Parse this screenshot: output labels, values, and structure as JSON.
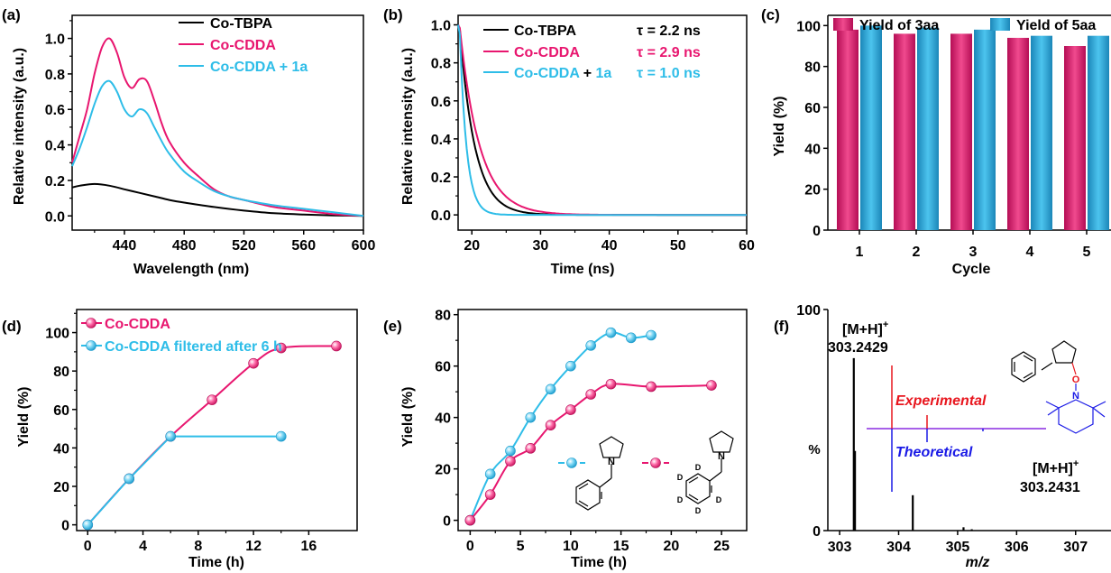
{
  "chart_data": [
    {
      "panel": "(a)",
      "type": "line",
      "xlabel": "Wavelength (nm)",
      "ylabel": "Relative intensity (a.u.)",
      "xlim": [
        405,
        600
      ],
      "ylim": [
        -0.08,
        1.13
      ],
      "xticks": [
        440,
        480,
        520,
        560,
        600
      ],
      "yticks": [
        0.0,
        0.2,
        0.4,
        0.6,
        0.8,
        1.0
      ],
      "legend_position": "top-right",
      "series": [
        {
          "name": "Co-TBPA",
          "color": "#000000",
          "x": [
            405,
            410,
            420,
            430,
            440,
            450,
            460,
            470,
            480,
            500,
            520,
            540,
            560,
            580,
            600
          ],
          "y": [
            0.16,
            0.17,
            0.18,
            0.17,
            0.15,
            0.13,
            0.11,
            0.09,
            0.075,
            0.05,
            0.03,
            0.015,
            0.008,
            0.003,
            0.0
          ]
        },
        {
          "name": "Co-CDDA",
          "color": "#e8166f",
          "x": [
            405,
            410,
            415,
            420,
            425,
            430,
            435,
            440,
            445,
            450,
            455,
            460,
            465,
            470,
            480,
            490,
            500,
            510,
            520,
            540,
            560,
            580,
            600
          ],
          "y": [
            0.3,
            0.45,
            0.6,
            0.8,
            0.95,
            1.0,
            0.92,
            0.78,
            0.72,
            0.77,
            0.76,
            0.65,
            0.52,
            0.42,
            0.3,
            0.22,
            0.15,
            0.11,
            0.09,
            0.05,
            0.03,
            0.01,
            0.0
          ]
        },
        {
          "name": "Co-CDDA + 1a",
          "color": "#2ebde8",
          "x": [
            405,
            410,
            415,
            420,
            425,
            430,
            435,
            440,
            445,
            450,
            455,
            460,
            465,
            470,
            480,
            490,
            500,
            510,
            520,
            540,
            560,
            580,
            600
          ],
          "y": [
            0.28,
            0.38,
            0.5,
            0.63,
            0.73,
            0.76,
            0.7,
            0.6,
            0.56,
            0.6,
            0.58,
            0.5,
            0.42,
            0.35,
            0.25,
            0.19,
            0.14,
            0.11,
            0.09,
            0.06,
            0.04,
            0.02,
            0.0
          ]
        }
      ]
    },
    {
      "panel": "(b)",
      "type": "line",
      "xlabel": "Time (ns)",
      "ylabel": "Relative intensity (a.u.)",
      "xlim": [
        18,
        60
      ],
      "ylim": [
        -0.08,
        1.05
      ],
      "xticks": [
        20,
        30,
        40,
        50,
        60
      ],
      "yticks": [
        0.0,
        0.2,
        0.4,
        0.6,
        0.8,
        1.0
      ],
      "legend_position": "top-right",
      "series": [
        {
          "name": "Co-TBPA",
          "label": "Co-TBPA",
          "tau_label": "τ = 2.2 ns",
          "color": "#000000",
          "tau": 2.2,
          "t0": 18.2
        },
        {
          "name": "Co-CDDA",
          "label": "Co-CDDA",
          "tau_label": "τ = 2.9 ns",
          "color": "#e8166f",
          "tau": 2.9,
          "t0": 18.2
        },
        {
          "name": "Co-CDDA + 1a",
          "label_a": "Co-CDDA",
          "label_b": " + ",
          "label_c": "1a",
          "tau_label": "τ = 1.0 ns",
          "color": "#2ebde8",
          "tau": 1.0,
          "t0": 18.2
        }
      ]
    },
    {
      "panel": "(c)",
      "type": "bar",
      "xlabel": "Cycle",
      "ylabel": "Yield (%)",
      "ylim": [
        0,
        105
      ],
      "yticks": [
        0,
        20,
        40,
        60,
        80,
        100
      ],
      "categories": [
        "1",
        "2",
        "3",
        "4",
        "5"
      ],
      "legend_position": "top",
      "series": [
        {
          "name": "Yield of 3aa",
          "color": "#e8166f",
          "values": [
            98,
            96,
            96,
            94,
            90
          ]
        },
        {
          "name": "Yield of 5aa",
          "color": "#2aa9dc",
          "values": [
            100,
            99,
            98,
            95,
            95
          ]
        }
      ]
    },
    {
      "panel": "(d)",
      "type": "line",
      "xlabel": "Time (h)",
      "ylabel": "Yield (%)",
      "xlim": [
        -0.8,
        19.5
      ],
      "ylim": [
        -3,
        112
      ],
      "xticks": [
        0,
        4,
        8,
        12,
        16
      ],
      "yticks": [
        0,
        20,
        40,
        60,
        80,
        100
      ],
      "legend_position": "top-left",
      "series": [
        {
          "name": "Co-CDDA",
          "color": "#e8166f",
          "x": [
            0,
            3,
            6,
            9,
            12,
            14,
            18
          ],
          "y": [
            0,
            24,
            46,
            65,
            84,
            92,
            93
          ]
        },
        {
          "name": "Co-CDDA filtered after 6 h",
          "color": "#2ebde8",
          "x": [
            0,
            3,
            6,
            14
          ],
          "y": [
            0,
            24,
            46,
            46
          ]
        }
      ]
    },
    {
      "panel": "(e)",
      "type": "line",
      "xlabel": "Time (h)",
      "ylabel": "Yield (%)",
      "xlim": [
        -1.2,
        27.5
      ],
      "ylim": [
        -4,
        82
      ],
      "xticks": [
        0,
        5,
        10,
        15,
        20,
        25
      ],
      "yticks": [
        0,
        20,
        40,
        60,
        80
      ],
      "series": [
        {
          "name": "",
          "color": "#2ebde8",
          "x": [
            0,
            2,
            4,
            6,
            8,
            10,
            12,
            14,
            16,
            18
          ],
          "y": [
            0,
            18,
            27,
            40,
            51,
            60,
            68,
            73,
            71,
            72
          ]
        },
        {
          "name": "",
          "color": "#e8166f",
          "x": [
            0,
            2,
            4,
            6,
            8,
            10,
            12,
            14,
            18,
            24
          ],
          "y": [
            0,
            10,
            23,
            28,
            37,
            43,
            49,
            53,
            52,
            52.5
          ]
        }
      ],
      "structure_labels": {
        "deuterium": "D",
        "nitrogen": "N"
      }
    },
    {
      "panel": "(f)",
      "type": "bar",
      "xlabel": "m/z",
      "ylabel": "%",
      "xlim": [
        302.8,
        307.6
      ],
      "ylim": [
        0,
        100
      ],
      "xticks": [
        303,
        304,
        305,
        306,
        307
      ],
      "yticks": [
        0,
        100
      ],
      "peaks": [
        {
          "x": 303.24,
          "y": 78
        },
        {
          "x": 303.26,
          "y": 36
        },
        {
          "x": 304.24,
          "y": 16
        },
        {
          "x": 305.1,
          "y": 1.5
        },
        {
          "x": 305.24,
          "y": 0.6
        }
      ],
      "inset_left": {
        "label_top": "[M+H]",
        "label_sup": "+",
        "mass": "303.2429"
      },
      "inset": {
        "experimental_label": "Experimental",
        "theoretical_label": "Theoretical",
        "experimental_color": "#e8161e",
        "theoretical_color": "#1a1ae6",
        "axis_color": "#8a2be2"
      },
      "inset_right": {
        "label_top": "[M+H]",
        "label_sup": "+",
        "mass": "303.2431"
      },
      "structure_labels": {
        "oxygen": "O",
        "nitrogen": "N"
      }
    }
  ]
}
